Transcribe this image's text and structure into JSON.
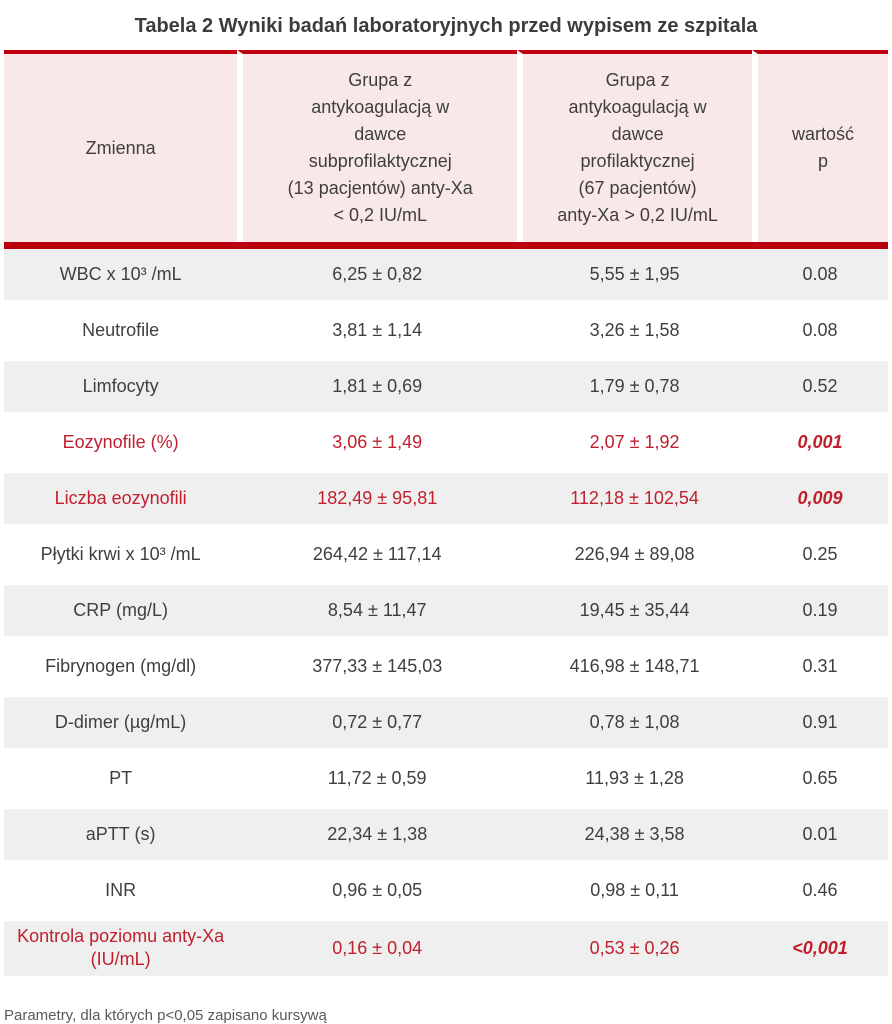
{
  "title": "Tabela 2 Wyniki badań laboratoryjnych przed wypisem ze szpitala",
  "colors": {
    "accent_red_line": "#c00010",
    "header_divider_red": "#bb0010",
    "header_pink": "#f9e8e8",
    "row_gray": "#efefef",
    "highlight_red_text": "#c0202e",
    "body_text": "#3f3f3f",
    "footnote_gray": "#595959"
  },
  "table": {
    "columns": [
      "Zmienna",
      "Grupa z\nantykoagulacją w\ndawce\nsubprofilaktycznej\n(13 pacjentów) anty-Xa\n< 0,2 IU/mL",
      "Grupa z\nantykoagulacją w\ndawce\nprofilaktycznej\n(67 pacjentów)\nanty-Xa > 0,2 IU/mL",
      "wartość\np"
    ],
    "rows": [
      {
        "variable": "WBC x 10³ /mL",
        "subprophylactic": "6,25 ± 0,82",
        "prophylactic": "5,55 ± 1,95",
        "p": "0.08",
        "highlight": false
      },
      {
        "variable": "Neutrofile",
        "subprophylactic": "3,81 ± 1,14",
        "prophylactic": "3,26 ± 1,58",
        "p": "0.08",
        "highlight": false
      },
      {
        "variable": "Limfocyty",
        "subprophylactic": "1,81 ± 0,69",
        "prophylactic": "1,79 ± 0,78",
        "p": "0.52",
        "highlight": false
      },
      {
        "variable": "Eozynofile (%)",
        "subprophylactic": "3,06 ± 1,49",
        "prophylactic": "2,07 ± 1,92",
        "p": "0,001",
        "highlight": true
      },
      {
        "variable": "Liczba eozynofili",
        "subprophylactic": "182,49 ± 95,81",
        "prophylactic": "112,18 ± 102,54",
        "p": "0,009",
        "highlight": true
      },
      {
        "variable": "Płytki krwi x 10³ /mL",
        "subprophylactic": "264,42 ± 117,14",
        "prophylactic": "226,94 ± 89,08",
        "p": "0.25",
        "highlight": false
      },
      {
        "variable": "CRP (mg/L)",
        "subprophylactic": "8,54 ± 11,47",
        "prophylactic": "19,45 ± 35,44",
        "p": "0.19",
        "highlight": false
      },
      {
        "variable": "Fibrynogen (mg/dl)",
        "subprophylactic": "377,33 ± 145,03",
        "prophylactic": "416,98 ± 148,71",
        "p": "0.31",
        "highlight": false
      },
      {
        "variable": "D-dimer (µg/mL)",
        "subprophylactic": "0,72 ± 0,77",
        "prophylactic": "0,78 ± 1,08",
        "p": "0.91",
        "highlight": false
      },
      {
        "variable": "PT",
        "subprophylactic": "11,72 ± 0,59",
        "prophylactic": "11,93 ± 1,28",
        "p": "0.65",
        "highlight": false
      },
      {
        "variable": "aPTT (s)",
        "subprophylactic": "22,34 ± 1,38",
        "prophylactic": "24,38 ± 3,58",
        "p": "0.01",
        "highlight": false
      },
      {
        "variable": "INR",
        "subprophylactic": "0,96 ± 0,05",
        "prophylactic": "0,98 ± 0,11",
        "p": "0.46",
        "highlight": false
      },
      {
        "variable": "Kontrola poziomu anty-Xa (IU/mL)",
        "subprophylactic": "0,16 ± 0,04",
        "prophylactic": "0,53 ± 0,26",
        "p": "<0,001",
        "highlight": true
      }
    ]
  },
  "footnote": "Parametry, dla których p<0,05 zapisano kursywą"
}
